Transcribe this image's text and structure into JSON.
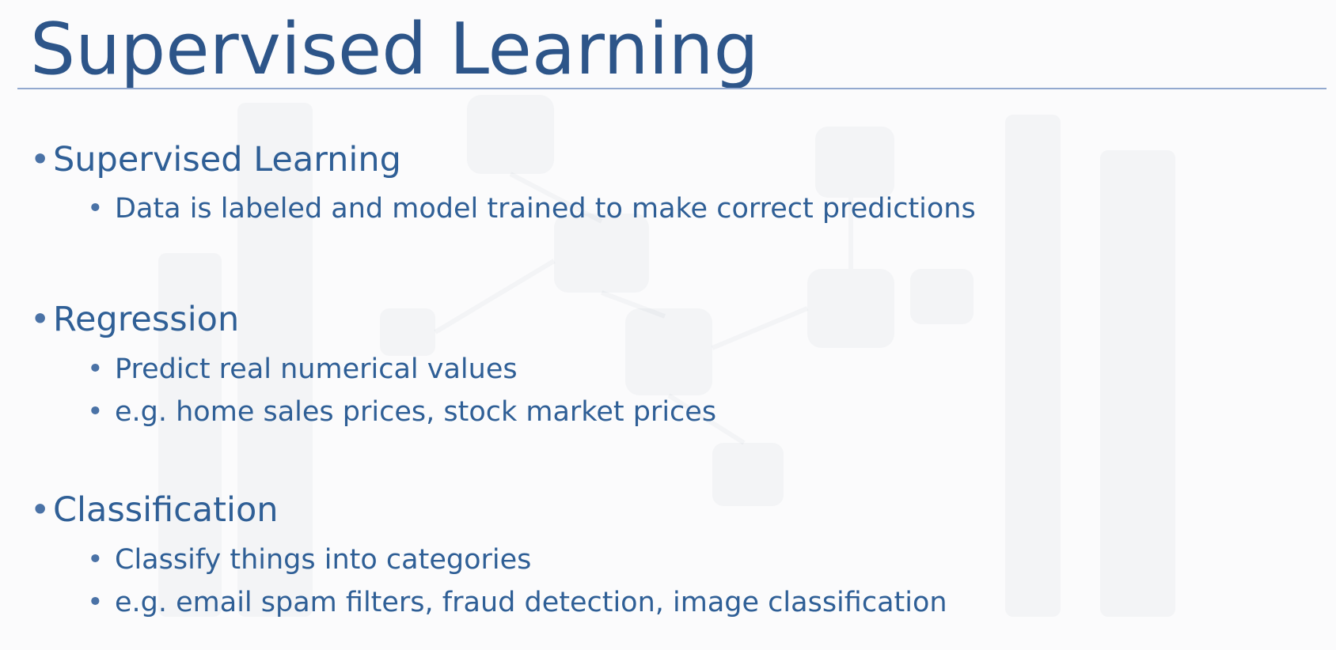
{
  "slide": {
    "title": "Supervised Learning",
    "sections": [
      {
        "heading": "Supervised Learning",
        "items": [
          "Data is labeled and model trained to make correct predictions"
        ]
      },
      {
        "heading": "Regression",
        "items": [
          "Predict real numerical values",
          "e.g. home sales prices, stock market prices"
        ]
      },
      {
        "heading": "Classification",
        "items": [
          "Classify things into categories",
          "e.g. email spam filters, fraud detection, image classification"
        ]
      }
    ],
    "bullet_glyph": "•",
    "colors": {
      "title": "#2d5589",
      "text": "#2f5f96",
      "rule": "#93a9cf",
      "background": "#fbfbfc"
    }
  }
}
